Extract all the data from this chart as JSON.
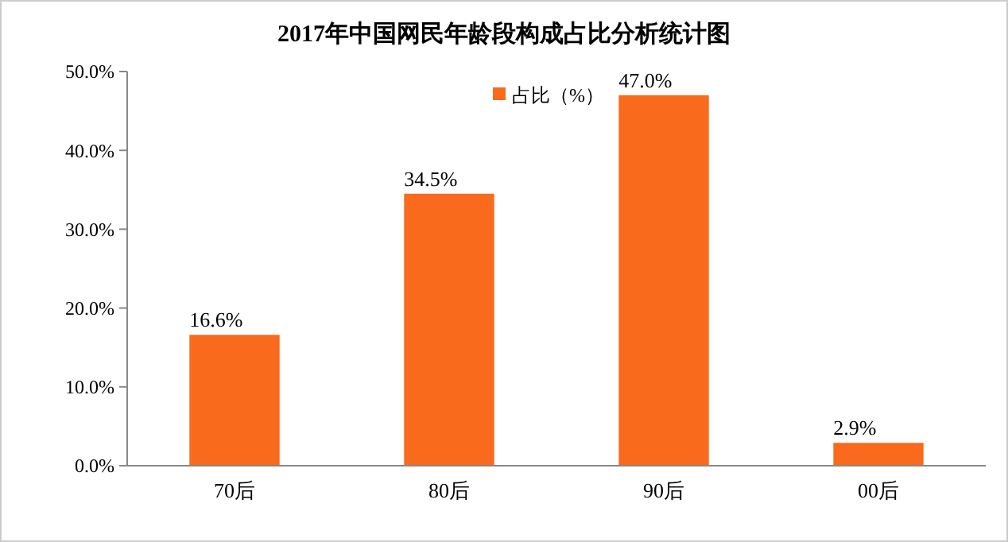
{
  "chart_data": {
    "type": "bar",
    "title": "2017年中国网民年龄段构成占比分析统计图",
    "categories": [
      "70后",
      "80后",
      "90后",
      "00后"
    ],
    "series": [
      {
        "name": "占比（%）",
        "color": "#fa6a1c",
        "values": [
          16.6,
          34.5,
          47.0,
          2.9
        ],
        "value_labels": [
          "16.6%",
          "34.5%",
          "47.0%",
          "2.9%"
        ]
      }
    ],
    "ylim": [
      0,
      50
    ],
    "yticks": [
      {
        "value": 0,
        "label": "0.0%"
      },
      {
        "value": 10,
        "label": "10.0%"
      },
      {
        "value": 20,
        "label": "20.0%"
      },
      {
        "value": 30,
        "label": "30.0%"
      },
      {
        "value": 40,
        "label": "40.0%"
      },
      {
        "value": 50,
        "label": "50.0%"
      }
    ],
    "legend": "top",
    "grid": false
  }
}
